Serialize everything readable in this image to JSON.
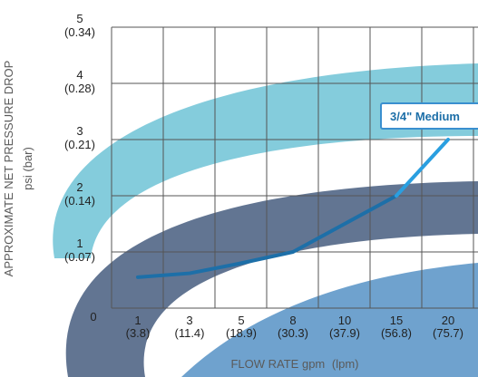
{
  "chart_data": {
    "type": "line",
    "x": [
      1,
      3,
      5,
      8,
      10,
      15,
      20
    ],
    "x_tick_labels": [
      {
        "top": "1",
        "bottom": "(3.8)"
      },
      {
        "top": "3",
        "bottom": "(11.4)"
      },
      {
        "top": "5",
        "bottom": "(18.9)"
      },
      {
        "top": "8",
        "bottom": "(30.3)"
      },
      {
        "top": "10",
        "bottom": "(37.9)"
      },
      {
        "top": "15",
        "bottom": "(56.8)"
      },
      {
        "top": "20",
        "bottom": "(75.7)"
      }
    ],
    "y_ticks": [
      0,
      1,
      2,
      3,
      4,
      5
    ],
    "y_tick_labels": [
      {
        "top": "0",
        "bottom": ""
      },
      {
        "top": "1",
        "bottom": "(0.07)"
      },
      {
        "top": "2",
        "bottom": "(0.14)"
      },
      {
        "top": "3",
        "bottom": "(0.21)"
      },
      {
        "top": "4",
        "bottom": "(0.28)"
      },
      {
        "top": "5",
        "bottom": "(0.34)"
      }
    ],
    "ylim": [
      0,
      5
    ],
    "xlabel": {
      "main": "FLOW RATE gpm",
      "units": "(lpm)"
    },
    "ylabel": {
      "main": "APPROXIMATE NET PRESSURE DROP",
      "units": "psi (bar)"
    },
    "grid": true,
    "series": [
      {
        "name": "3/4\" Medium",
        "values": [
          0.55,
          0.62,
          0.8,
          1.0,
          1.5,
          2.0,
          3.0
        ],
        "color": "#1d6fa8"
      }
    ],
    "colors": {
      "band_top": "#6fc3d6",
      "band_middle": "#5a6e8c",
      "band_bottom": "#5f98c9",
      "line": "#1d6fa8",
      "line_highlight": "#2a9fe0",
      "grid": "#555555"
    }
  }
}
